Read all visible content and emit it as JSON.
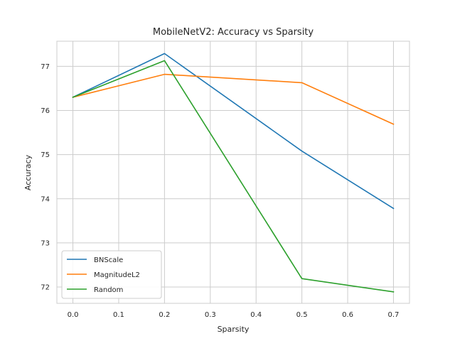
{
  "chart_data": {
    "type": "line",
    "title": "MobileNetV2: Accuracy vs Sparsity",
    "xlabel": "Sparsity",
    "ylabel": "Accuracy",
    "x": [
      0.0,
      0.2,
      0.5,
      0.7
    ],
    "xlim": [
      -0.035,
      0.735
    ],
    "ylim": [
      71.63,
      77.57
    ],
    "xticks": [
      0.0,
      0.1,
      0.2,
      0.3,
      0.4,
      0.5,
      0.6,
      0.7
    ],
    "xtick_labels": [
      "0.0",
      "0.1",
      "0.2",
      "0.3",
      "0.4",
      "0.5",
      "0.6",
      "0.7"
    ],
    "yticks": [
      72,
      73,
      74,
      75,
      76,
      77
    ],
    "ytick_labels": [
      "72",
      "73",
      "74",
      "75",
      "76",
      "77"
    ],
    "grid": true,
    "legend_position": "lower-left",
    "series": [
      {
        "name": "BNScale",
        "color": "#1f77b4",
        "values": [
          76.3,
          77.29,
          75.08,
          73.78
        ]
      },
      {
        "name": "MagnitudeL2",
        "color": "#ff7f0e",
        "values": [
          76.3,
          76.82,
          76.63,
          75.69
        ]
      },
      {
        "name": "Random",
        "color": "#2ca02c",
        "values": [
          76.3,
          77.13,
          72.19,
          71.89
        ]
      }
    ]
  }
}
